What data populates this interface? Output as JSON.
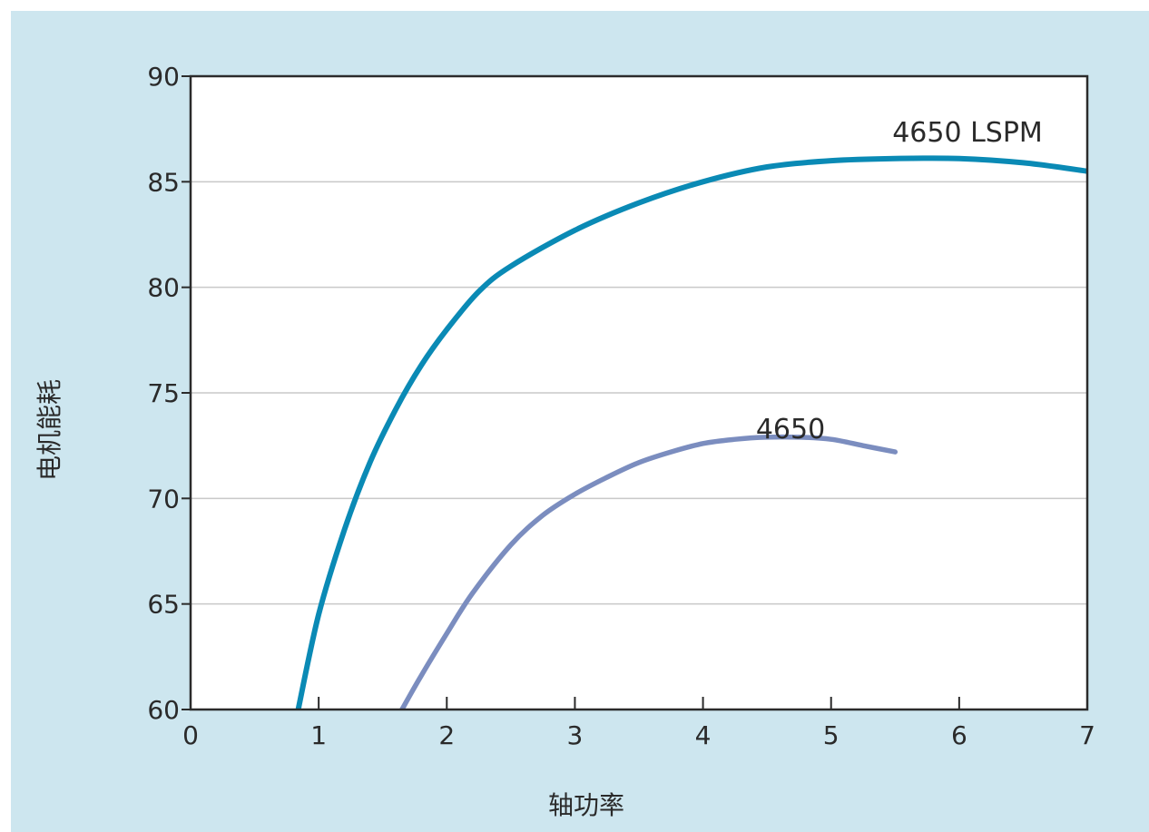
{
  "chart_data": {
    "type": "line",
    "title": "",
    "xlabel": "轴功率",
    "ylabel": "电机能耗",
    "xlim": [
      0,
      7
    ],
    "ylim": [
      60,
      90
    ],
    "x_ticks": [
      0,
      1,
      2,
      3,
      4,
      5,
      6,
      7
    ],
    "y_ticks": [
      60,
      65,
      70,
      75,
      80,
      85,
      90
    ],
    "grid": "horizontal",
    "legend": "none",
    "series": [
      {
        "name": "4650 LSPM",
        "color": "#0a8ab5",
        "x": [
          0.84,
          1.0,
          1.2,
          1.4,
          1.6,
          1.8,
          2.0,
          2.25,
          2.5,
          3.0,
          3.5,
          4.0,
          4.5,
          5.0,
          5.5,
          6.0,
          6.5,
          7.0
        ],
        "y": [
          60.0,
          64.5,
          68.5,
          71.7,
          74.2,
          76.3,
          78.0,
          79.8,
          81.0,
          82.7,
          84.0,
          85.0,
          85.7,
          86.0,
          86.1,
          86.1,
          85.9,
          85.5
        ]
      },
      {
        "name": "4650",
        "color": "#7b8dbf",
        "x": [
          1.65,
          1.8,
          2.0,
          2.2,
          2.5,
          2.75,
          3.0,
          3.25,
          3.5,
          3.75,
          4.0,
          4.25,
          4.5,
          4.75,
          5.0,
          5.25,
          5.5
        ],
        "y": [
          60.0,
          61.6,
          63.6,
          65.5,
          67.8,
          69.2,
          70.2,
          71.0,
          71.7,
          72.2,
          72.6,
          72.8,
          72.9,
          72.9,
          72.8,
          72.5,
          72.2
        ]
      }
    ]
  }
}
